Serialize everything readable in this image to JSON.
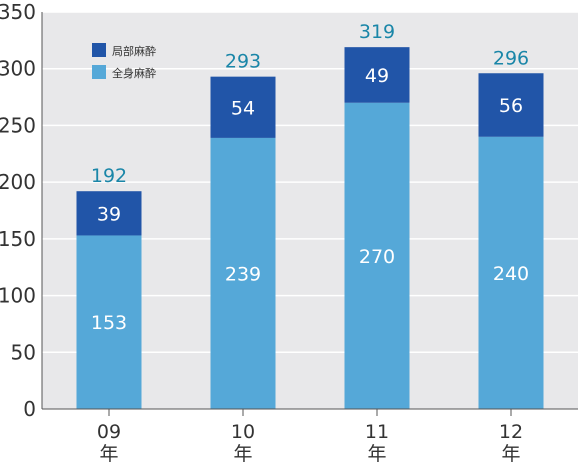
{
  "chart_data": {
    "type": "bar",
    "stacked": true,
    "categories": [
      {
        "year": "09",
        "suffix": "年"
      },
      {
        "year": "10",
        "suffix": "年"
      },
      {
        "year": "11",
        "suffix": "年"
      },
      {
        "year": "12",
        "suffix": "年"
      }
    ],
    "series": [
      {
        "name": "全身麻酔",
        "values": [
          153,
          239,
          270,
          240
        ],
        "color": "#55a8d8"
      },
      {
        "name": "局部麻酔",
        "values": [
          39,
          54,
          49,
          56
        ],
        "color": "#2155a8"
      }
    ],
    "totals": [
      192,
      293,
      319,
      296
    ],
    "ylim": [
      0,
      350
    ],
    "yticks": [
      0,
      50,
      100,
      150,
      200,
      250,
      300,
      350
    ],
    "grid": true,
    "legend_position": "top-left",
    "legend_order": [
      "局部麻酔",
      "全身麻酔"
    ],
    "colors": {
      "plot_background": "#e8e8ea",
      "grid": "#ffffff",
      "total_label": "#1a86a8",
      "segment_label": "#ffffff"
    }
  }
}
